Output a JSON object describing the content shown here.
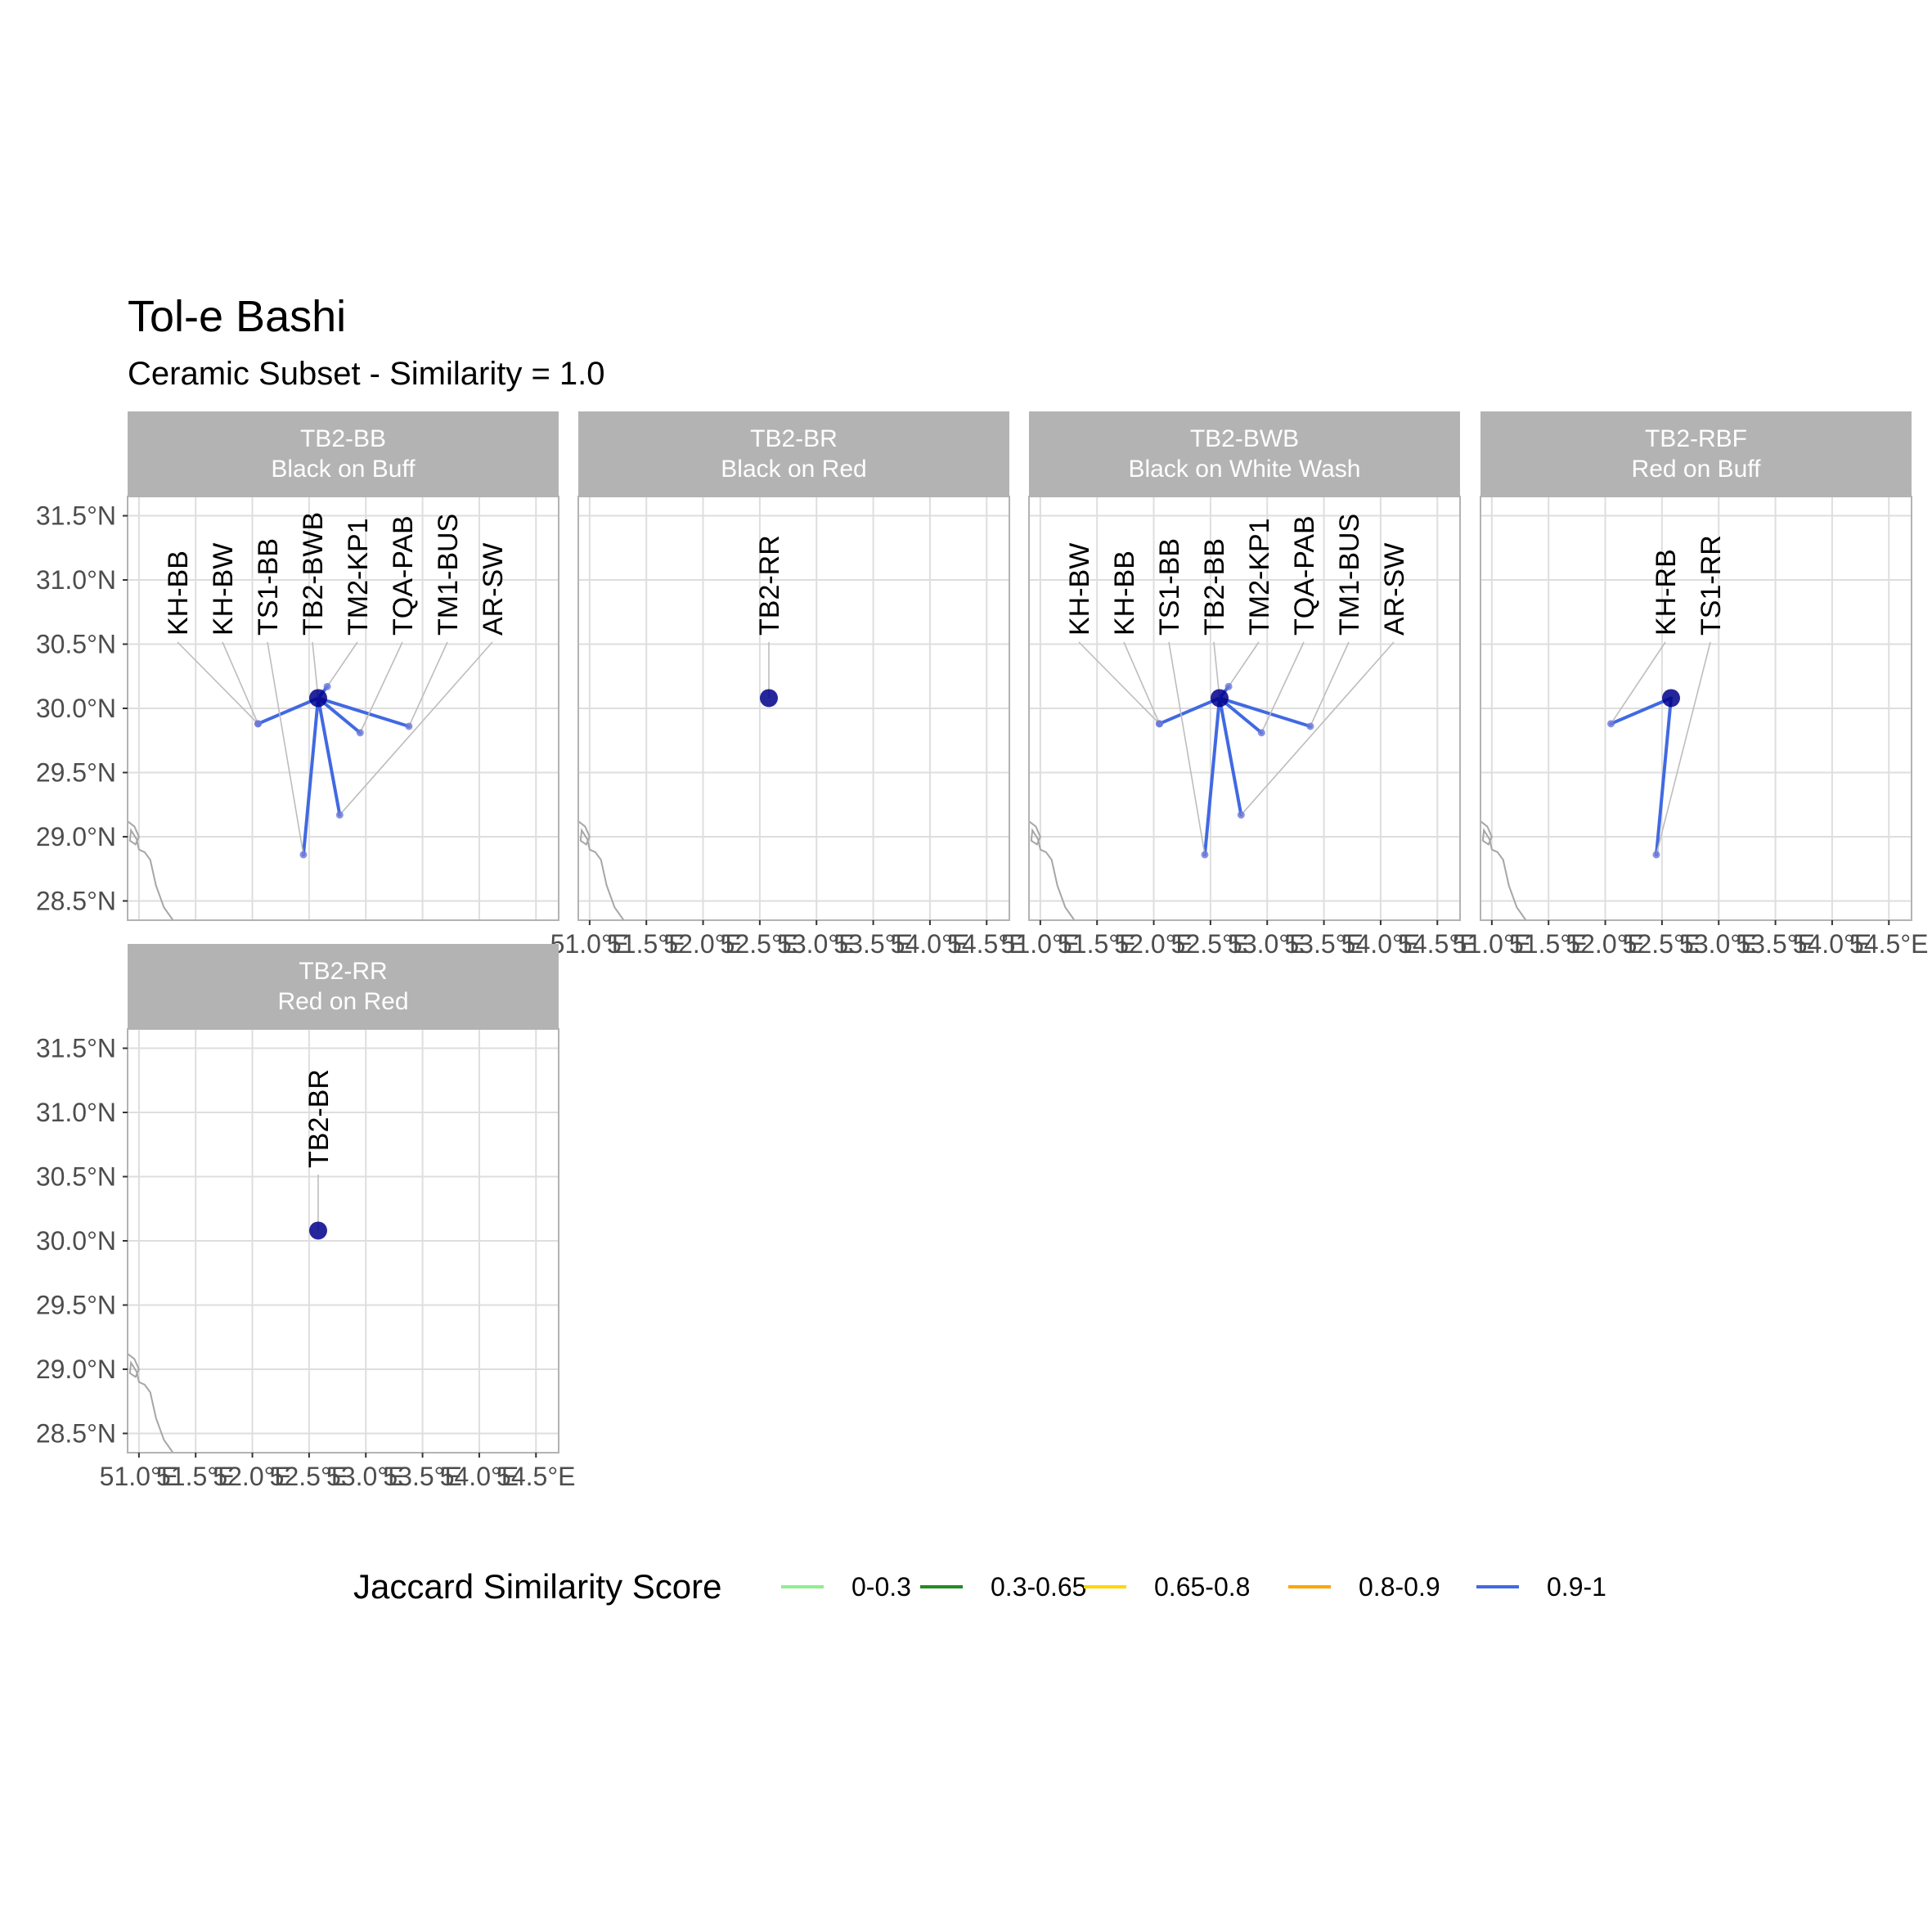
{
  "title": "Tol-e Bashi",
  "subtitle": "Ceramic Subset - Similarity = 1.0",
  "legend": {
    "title": "Jaccard Similarity Score",
    "items": [
      {
        "label": "0-0.3",
        "color": "#90ee90"
      },
      {
        "label": "0.3-0.65",
        "color": "#228b22"
      },
      {
        "label": "0.65-0.8",
        "color": "#ffd700"
      },
      {
        "label": "0.8-0.9",
        "color": "#ffa500"
      },
      {
        "label": "0.9-1",
        "color": "#4169e1"
      }
    ]
  },
  "chart_data": {
    "type": "map",
    "xlim": [
      50.9,
      54.7
    ],
    "ylim": [
      28.35,
      31.65
    ],
    "x_ticks": [
      51.0,
      51.5,
      52.0,
      52.5,
      53.0,
      53.5,
      54.0,
      54.5
    ],
    "x_tick_labels": [
      "51.0°E",
      "51.5°E",
      "52.0°E",
      "52.5°E",
      "53.0°E",
      "53.5°E",
      "54.0°E",
      "54.5°E"
    ],
    "y_ticks": [
      28.5,
      29.0,
      29.5,
      30.0,
      30.5,
      31.0,
      31.5
    ],
    "y_tick_labels": [
      "28.5°N",
      "29.0°N",
      "29.5°N",
      "30.0°N",
      "30.5°N",
      "31.0°N",
      "31.5°N"
    ],
    "grid": true,
    "legend_position": "bottom",
    "sites": {
      "TB2": {
        "lon": 52.58,
        "lat": 30.08
      },
      "KH": {
        "lon": 52.05,
        "lat": 29.88
      },
      "TS1": {
        "lon": 52.45,
        "lat": 28.86
      },
      "TM2": {
        "lon": 52.77,
        "lat": 29.17
      },
      "TQA": {
        "lon": 52.95,
        "lat": 29.81
      },
      "TM1": {
        "lon": 53.38,
        "lat": 29.86
      },
      "TM2_KP1": {
        "lon": 52.66,
        "lat": 30.17
      }
    },
    "panels": [
      {
        "id": "TB2-BB",
        "name": "Black on Buff",
        "main_label": "TB2-BB",
        "connections": [
          {
            "label": "KH-BB",
            "site": "KH",
            "score": 1.0
          },
          {
            "label": "KH-BW",
            "site": "KH",
            "score": 1.0
          },
          {
            "label": "TS1-BB",
            "site": "TS1",
            "score": 1.0
          },
          {
            "label": "TB2-BWB",
            "site": "TB2",
            "score": 1.0
          },
          {
            "label": "TM2-KP1",
            "site": "TM2_KP1",
            "score": 1.0
          },
          {
            "label": "TQA-PAB",
            "site": "TQA",
            "score": 1.0
          },
          {
            "label": "TM1-BUS",
            "site": "TM1",
            "score": 1.0
          },
          {
            "label": "AR-SW",
            "site": "TM2",
            "score": 1.0
          }
        ]
      },
      {
        "id": "TB2-BR",
        "name": "Black on Red",
        "connections": [
          {
            "label": "TB2-RR",
            "site": "TB2",
            "score": 1.0
          }
        ]
      },
      {
        "id": "TB2-BWB",
        "name": "Black on White Wash",
        "connections": [
          {
            "label": "KH-BW",
            "site": "KH",
            "score": 1.0
          },
          {
            "label": "KH-BB",
            "site": "KH",
            "score": 1.0
          },
          {
            "label": "TS1-BB",
            "site": "TS1",
            "score": 1.0
          },
          {
            "label": "TB2-BB",
            "site": "TB2",
            "score": 1.0
          },
          {
            "label": "TM2-KP1",
            "site": "TM2_KP1",
            "score": 1.0
          },
          {
            "label": "TQA-PAB",
            "site": "TQA",
            "score": 1.0
          },
          {
            "label": "TM1-BUS",
            "site": "TM1",
            "score": 1.0
          },
          {
            "label": "AR-SW",
            "site": "TM2",
            "score": 1.0
          }
        ]
      },
      {
        "id": "TB2-RBF",
        "name": "Red on Buff",
        "connections": [
          {
            "label": "KH-RB",
            "site": "KH",
            "score": 1.0
          },
          {
            "label": "TS1-RR",
            "site": "TS1",
            "score": 1.0
          }
        ]
      },
      {
        "id": "TB2-RR",
        "name": "Red on Red",
        "connections": [
          {
            "label": "TB2-BR",
            "site": "TB2",
            "score": 1.0
          }
        ]
      }
    ]
  }
}
